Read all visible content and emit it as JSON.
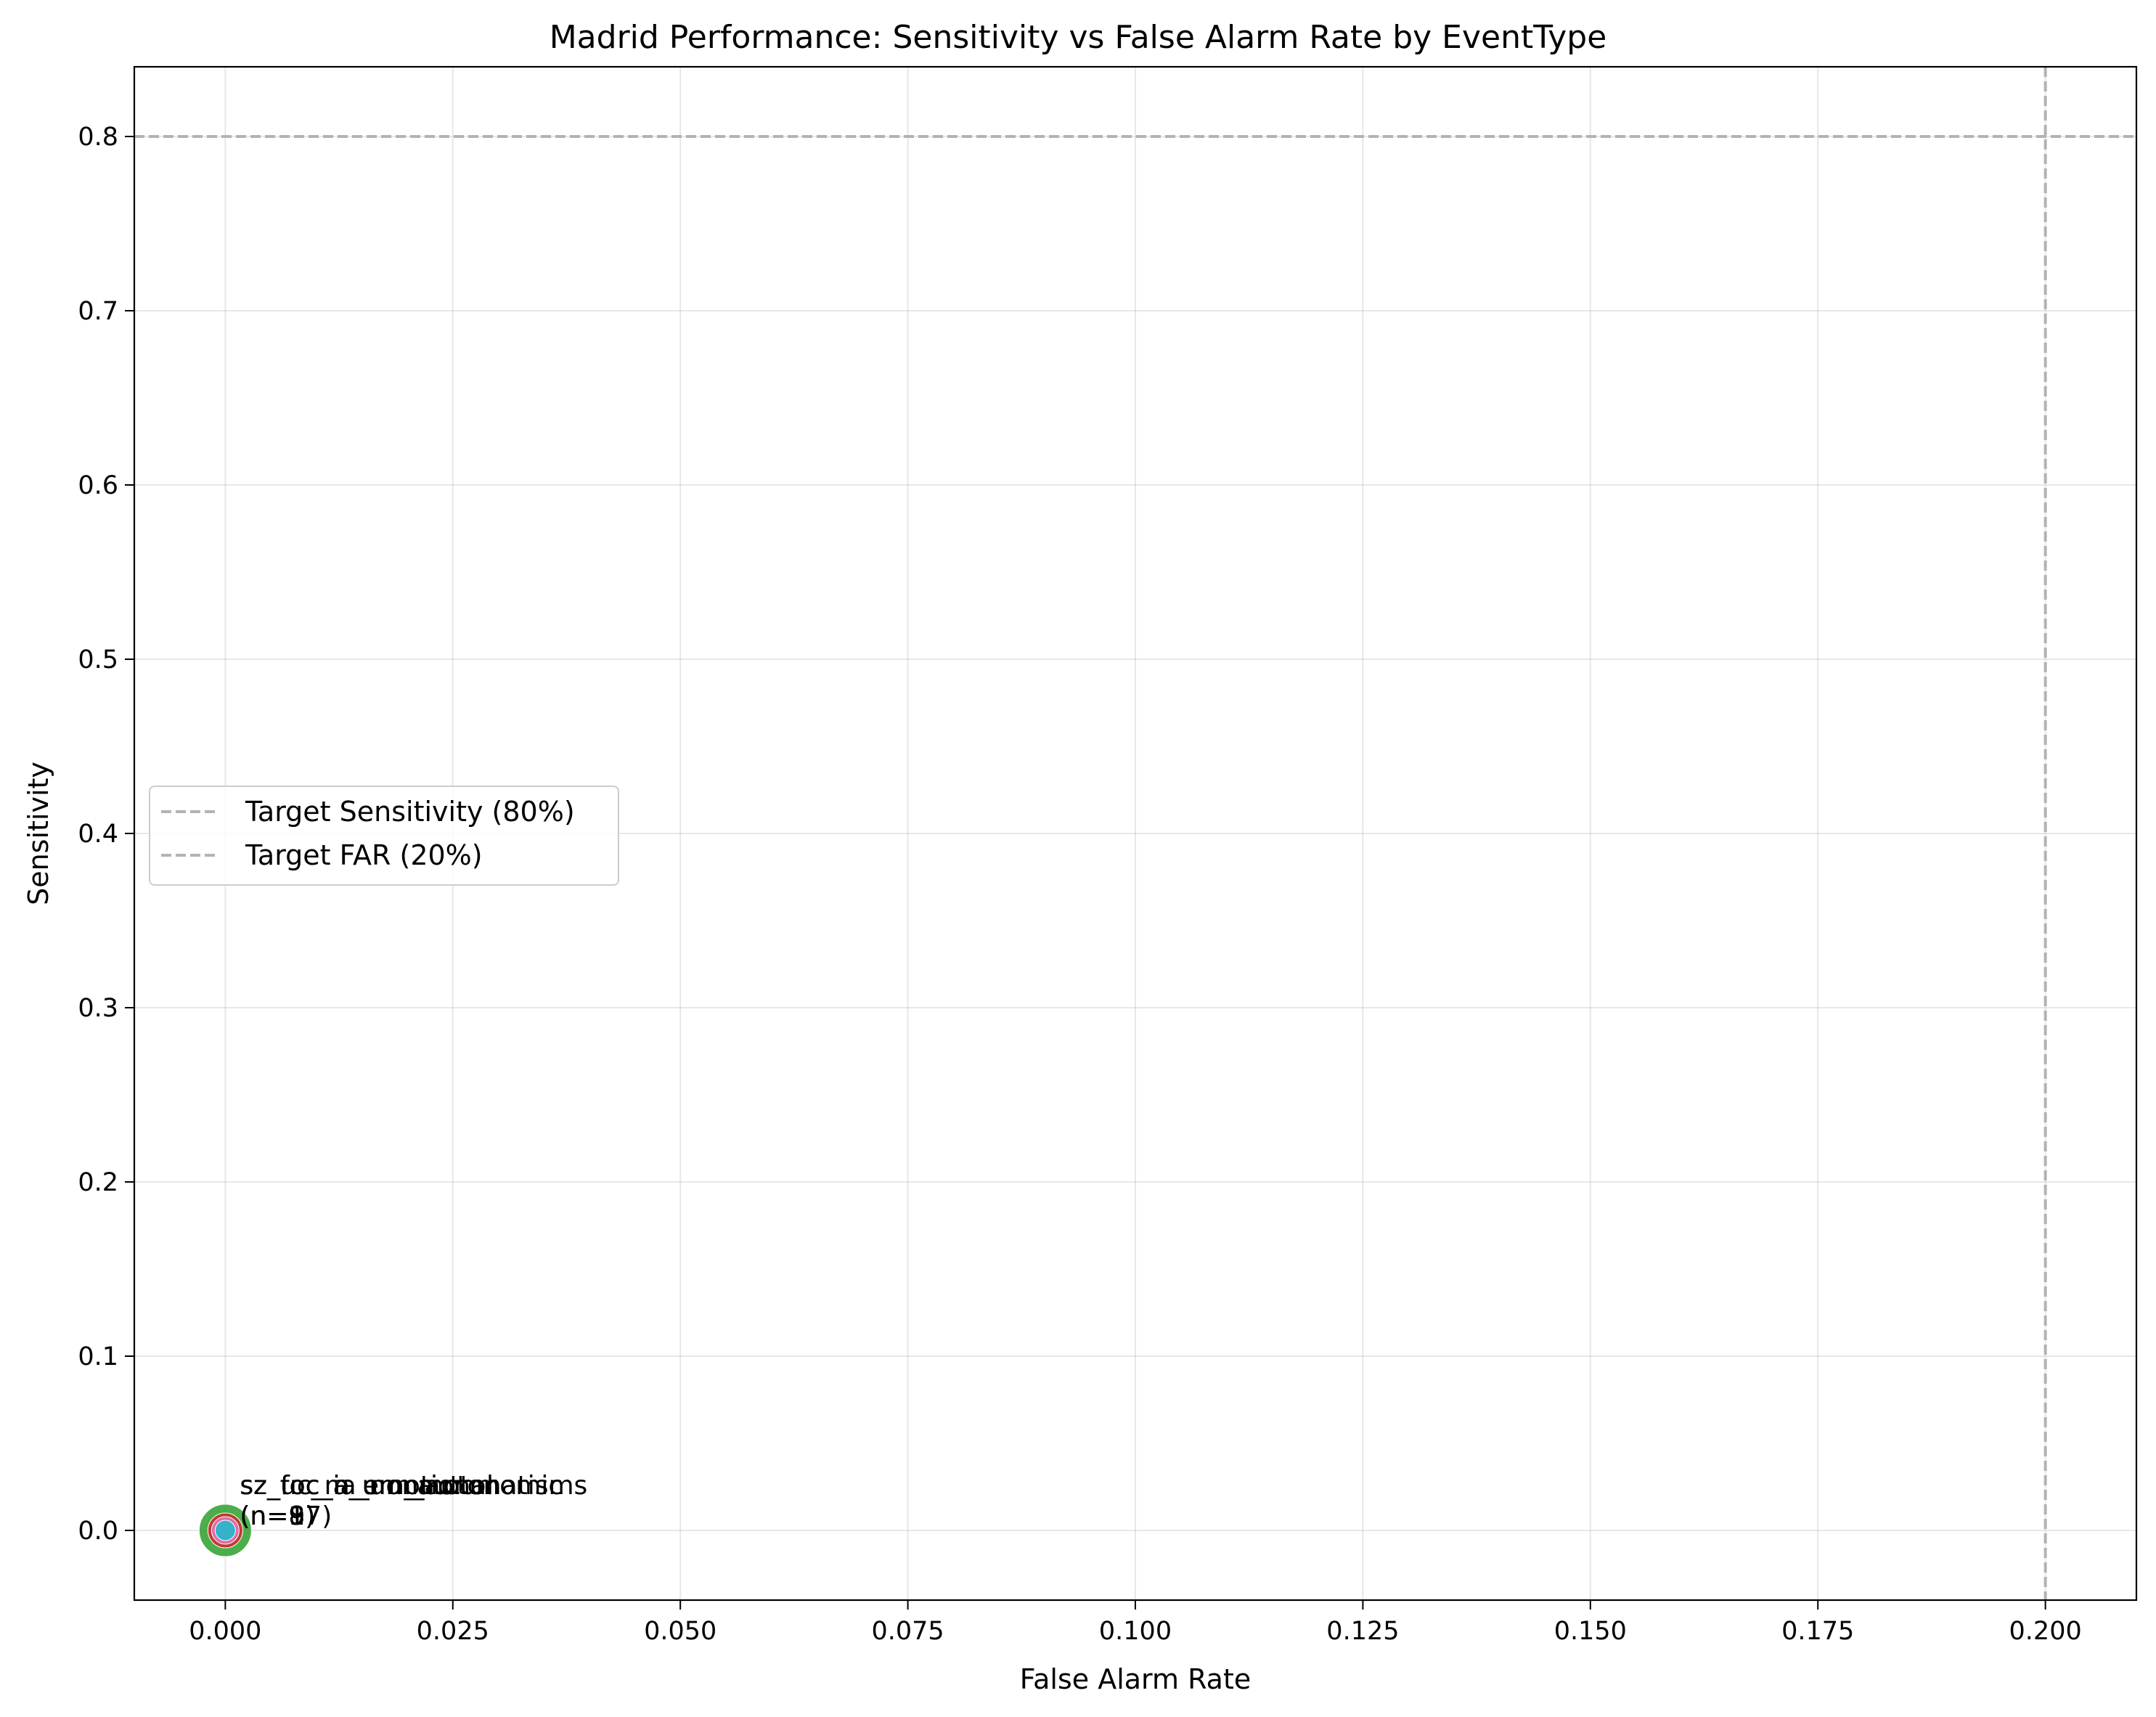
{
  "chart_data": {
    "type": "scatter",
    "title": "Madrid Performance: Sensitivity vs False Alarm Rate by EventType",
    "xlabel": "False Alarm Rate",
    "ylabel": "Sensitivity",
    "xlim": [
      -0.01,
      0.21
    ],
    "ylim": [
      -0.04,
      0.84
    ],
    "xticks": [
      0.0,
      0.025,
      0.05,
      0.075,
      0.1,
      0.125,
      0.15,
      0.175,
      0.2
    ],
    "xtick_labels": [
      "0.000",
      "0.025",
      "0.050",
      "0.075",
      "0.100",
      "0.125",
      "0.150",
      "0.175",
      "0.200"
    ],
    "yticks": [
      0.0,
      0.1,
      0.2,
      0.3,
      0.4,
      0.5,
      0.6,
      0.7,
      0.8
    ],
    "ytick_labels": [
      "0.0",
      "0.1",
      "0.2",
      "0.3",
      "0.4",
      "0.5",
      "0.6",
      "0.7",
      "0.8"
    ],
    "grid": true,
    "legend_position": "center-left",
    "reference_lines": [
      {
        "orientation": "horizontal",
        "value": 0.8,
        "label": "Target Sensitivity (80%)",
        "color": "#b3b3b3",
        "style": "dashed"
      },
      {
        "orientation": "vertical",
        "value": 0.2,
        "label": "Target FAR (20%)",
        "color": "#b3b3b3",
        "style": "dashed"
      }
    ],
    "points": [
      {
        "x": 0.0,
        "y": 0.0,
        "color": "#2ca02c"
      },
      {
        "x": 0.0,
        "y": 0.0,
        "color": "#d62728"
      },
      {
        "x": 0.0,
        "y": 0.0,
        "color": "#e377c2"
      },
      {
        "x": 0.0,
        "y": 0.0,
        "color": "#17becf"
      }
    ],
    "annotations": [
      {
        "x": 0.0,
        "y": 0.0,
        "lines": [
          "sz_foc_ia_nonmotor",
          "(n=8)"
        ]
      },
      {
        "x": 0.0,
        "y": 0.0,
        "lines": [
          "sz_foc_a_um_automatisms",
          "(n=17)"
        ]
      },
      {
        "x": 0.0,
        "y": 0.0,
        "lines": [
          "sz_foc_ia_um_autonomic",
          "(n=9)"
        ]
      },
      {
        "x": 0.0,
        "y": 0.0,
        "lines": [
          "sz_uc_m_emotional",
          "(n=1)"
        ]
      }
    ]
  }
}
